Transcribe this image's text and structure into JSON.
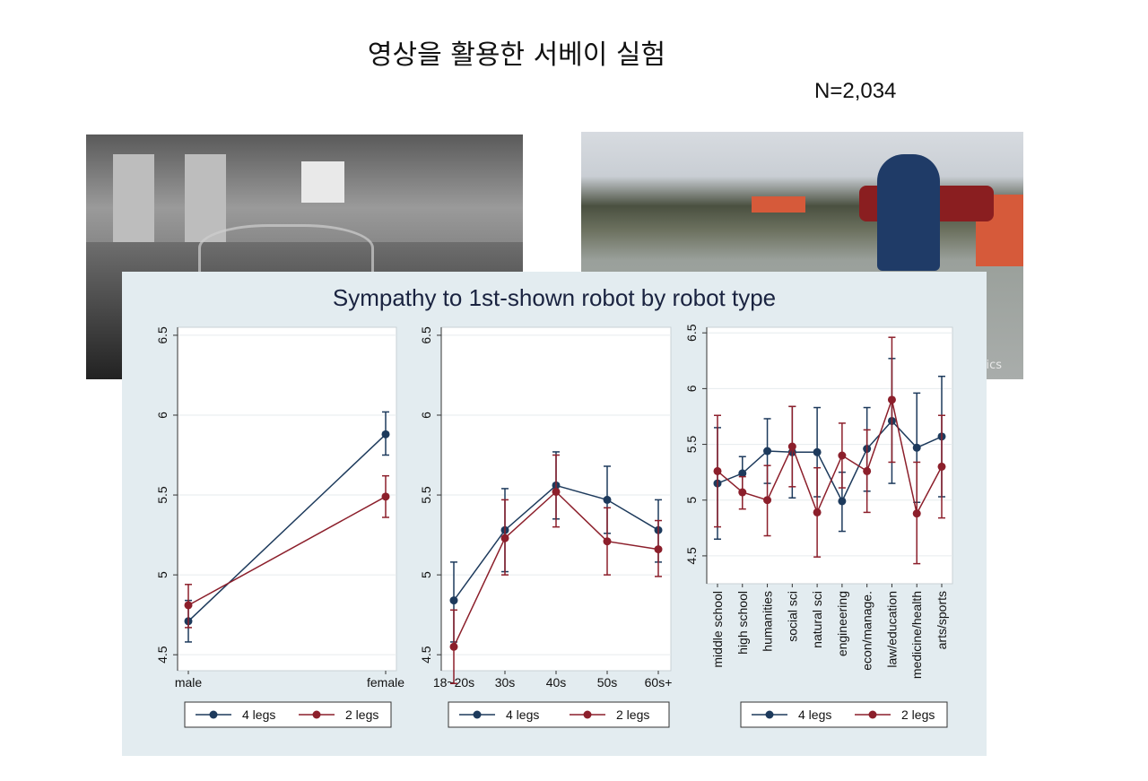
{
  "slide": {
    "title": "영상을 활용한 서베이 실험",
    "sample_size": "N=2,034"
  },
  "photos": {
    "right_watermark": "ics"
  },
  "colors": {
    "four_legs": "#1d3a5c",
    "two_legs": "#8c1f2b",
    "panel_bg": "#e3ecf0",
    "title_color": "#1a2340"
  },
  "chart_data": {
    "title": "Sympathy to 1st-shown robot by robot type",
    "series_names": [
      "4 legs",
      "2 legs"
    ],
    "panels": [
      {
        "type": "line",
        "categories": [
          "male",
          "female"
        ],
        "ylim": [
          4.4,
          6.55
        ],
        "yticks": [
          "4.5",
          "5",
          "5.5",
          "6",
          "6.5"
        ],
        "series": [
          {
            "name": "4 legs",
            "values": [
              4.71,
              5.88
            ],
            "lower": [
              4.58,
              5.75
            ],
            "upper": [
              4.84,
              6.02
            ]
          },
          {
            "name": "2 legs",
            "values": [
              4.81,
              5.49
            ],
            "lower": [
              4.67,
              5.36
            ],
            "upper": [
              4.94,
              5.62
            ]
          }
        ]
      },
      {
        "type": "line",
        "categories": [
          "18~20s",
          "30s",
          "40s",
          "50s",
          "60s+"
        ],
        "ylim": [
          4.4,
          6.55
        ],
        "yticks": [
          "4.5",
          "5",
          "5.5",
          "6",
          "6.5"
        ],
        "series": [
          {
            "name": "4 legs",
            "values": [
              4.84,
              5.28,
              5.56,
              5.47,
              5.28
            ],
            "lower": [
              4.58,
              5.02,
              5.35,
              5.26,
              5.08
            ],
            "upper": [
              5.08,
              5.54,
              5.77,
              5.68,
              5.47
            ]
          },
          {
            "name": "2 legs",
            "values": [
              4.55,
              5.23,
              5.52,
              5.21,
              5.16
            ],
            "lower": [
              4.32,
              5.0,
              5.3,
              5.0,
              4.99
            ],
            "upper": [
              4.78,
              5.47,
              5.75,
              5.42,
              5.34
            ]
          }
        ]
      },
      {
        "type": "line",
        "categories": [
          "middle school",
          "high school",
          "humanities",
          "social sci",
          "natural sci",
          "engineering",
          "econ/manage.",
          "law/education",
          "medicine/health",
          "arts/sports"
        ],
        "ylim": [
          4.25,
          6.55
        ],
        "yticks": [
          "4.5",
          "5",
          "5.5",
          "6",
          "6.5"
        ],
        "series": [
          {
            "name": "4 legs",
            "values": [
              5.15,
              5.24,
              5.44,
              5.43,
              5.43,
              4.99,
              5.46,
              5.71,
              5.47,
              5.57
            ],
            "lower": [
              4.65,
              5.08,
              5.15,
              5.02,
              5.03,
              4.72,
              5.08,
              5.15,
              4.98,
              5.03
            ],
            "upper": [
              5.65,
              5.39,
              5.73,
              5.84,
              5.83,
              5.25,
              5.83,
              6.27,
              5.96,
              6.11
            ]
          },
          {
            "name": "2 legs",
            "values": [
              5.26,
              5.07,
              5.0,
              5.48,
              4.89,
              5.4,
              5.26,
              5.9,
              4.88,
              5.3
            ],
            "lower": [
              4.76,
              4.92,
              4.68,
              5.12,
              4.49,
              5.11,
              4.89,
              5.34,
              4.43,
              4.84
            ],
            "upper": [
              5.76,
              5.21,
              5.31,
              5.84,
              5.29,
              5.69,
              5.63,
              6.46,
              5.34,
              5.76
            ]
          }
        ]
      }
    ]
  }
}
